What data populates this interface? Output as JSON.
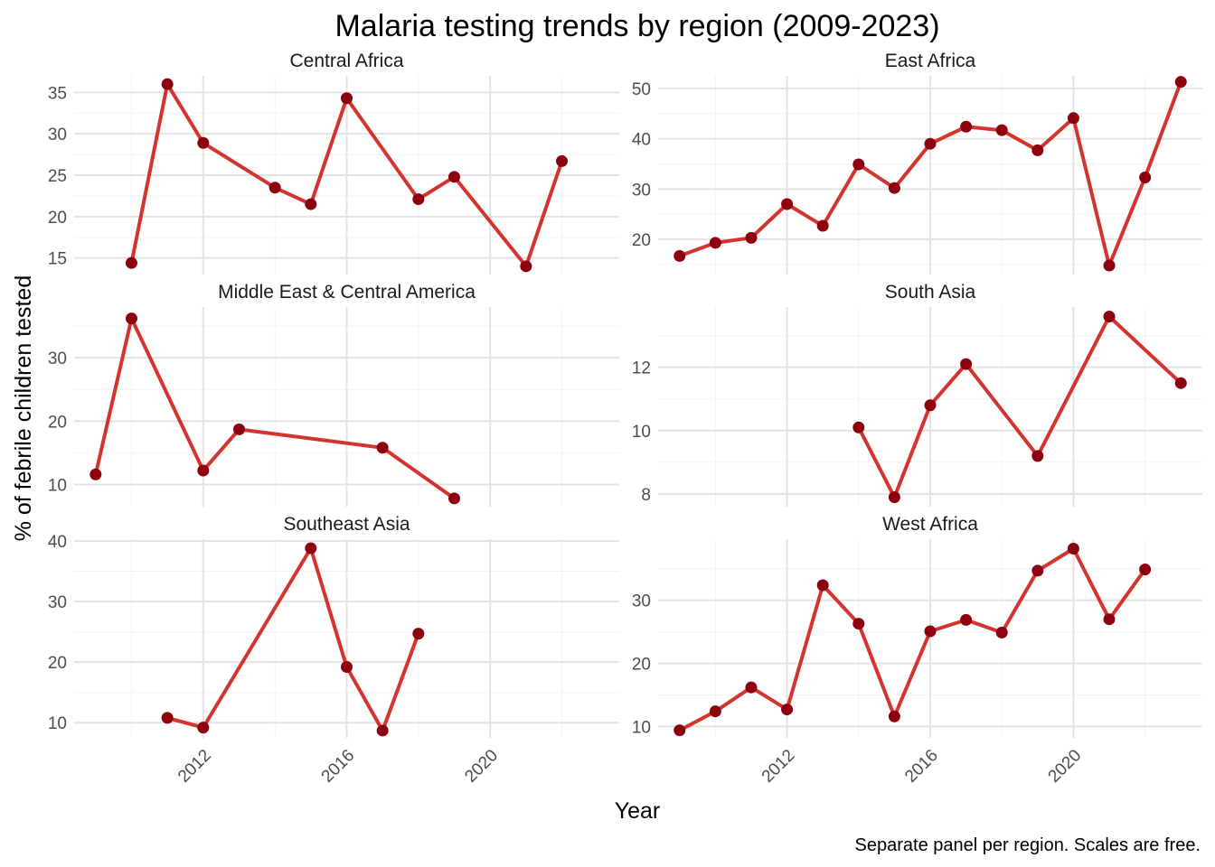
{
  "chart_data": {
    "type": "line",
    "title": "Malaria testing trends by region (2009-2023)",
    "xlabel": "Year",
    "ylabel": "% of febrile children tested",
    "caption": "Separate panel per region. Scales are free.",
    "x_ticks": [
      2012,
      2016,
      2020
    ],
    "xlim": [
      2008.4,
      2023.6
    ],
    "grid": true,
    "line_color": "#d4342d",
    "point_color": "#8e0010",
    "panels": [
      {
        "name": "Central Africa",
        "ylim": [
          13.0,
          37.0
        ],
        "y_ticks": [
          15,
          20,
          25,
          30,
          35
        ],
        "points": [
          [
            2010,
            14.4
          ],
          [
            2011,
            36.0
          ],
          [
            2012,
            28.9
          ],
          [
            2014,
            23.5
          ],
          [
            2015,
            21.5
          ],
          [
            2016,
            34.3
          ],
          [
            2018,
            22.1
          ],
          [
            2019,
            24.8
          ],
          [
            2021,
            14.0
          ],
          [
            2022,
            26.7
          ]
        ]
      },
      {
        "name": "East Africa",
        "ylim": [
          13.0,
          52.5
        ],
        "y_ticks": [
          20,
          30,
          40,
          50
        ],
        "points": [
          [
            2009,
            16.7
          ],
          [
            2010,
            19.3
          ],
          [
            2011,
            20.3
          ],
          [
            2012,
            27.0
          ],
          [
            2013,
            22.7
          ],
          [
            2014,
            34.9
          ],
          [
            2015,
            30.2
          ],
          [
            2016,
            39.0
          ],
          [
            2017,
            42.4
          ],
          [
            2018,
            41.7
          ],
          [
            2019,
            37.7
          ],
          [
            2020,
            44.1
          ],
          [
            2021,
            14.8
          ],
          [
            2022,
            32.3
          ],
          [
            2023,
            51.3
          ]
        ]
      },
      {
        "name": "Middle East & Central America",
        "ylim": [
          6.5,
          38.0
        ],
        "y_ticks": [
          10,
          20,
          30
        ],
        "points": [
          [
            2009,
            11.6
          ],
          [
            2010,
            36.2
          ],
          [
            2012,
            12.2
          ],
          [
            2013,
            18.7
          ],
          [
            2017,
            15.8
          ],
          [
            2019,
            7.8
          ]
        ]
      },
      {
        "name": "South Asia",
        "ylim": [
          7.6,
          13.9
        ],
        "y_ticks": [
          8,
          10,
          12
        ],
        "points": [
          [
            2014,
            10.1
          ],
          [
            2015,
            7.9
          ],
          [
            2016,
            10.8
          ],
          [
            2017,
            12.1
          ],
          [
            2019,
            9.2
          ],
          [
            2021,
            13.6
          ],
          [
            2023,
            11.5
          ]
        ]
      },
      {
        "name": "Southeast Asia",
        "ylim": [
          7.5,
          40.3
        ],
        "y_ticks": [
          10,
          20,
          30,
          40
        ],
        "points": [
          [
            2011,
            10.8
          ],
          [
            2012,
            9.2
          ],
          [
            2015,
            38.8
          ],
          [
            2016,
            19.2
          ],
          [
            2017,
            8.7
          ],
          [
            2018,
            24.7
          ]
        ]
      },
      {
        "name": "West Africa",
        "ylim": [
          8.2,
          39.7
        ],
        "y_ticks": [
          10,
          20,
          30
        ],
        "points": [
          [
            2009,
            9.4
          ],
          [
            2010,
            12.4
          ],
          [
            2011,
            16.2
          ],
          [
            2012,
            12.7
          ],
          [
            2013,
            32.4
          ],
          [
            2014,
            26.3
          ],
          [
            2015,
            11.6
          ],
          [
            2016,
            25.1
          ],
          [
            2017,
            26.9
          ],
          [
            2018,
            24.9
          ],
          [
            2019,
            34.7
          ],
          [
            2020,
            38.2
          ],
          [
            2021,
            27.0
          ],
          [
            2022,
            34.9
          ]
        ]
      }
    ]
  }
}
